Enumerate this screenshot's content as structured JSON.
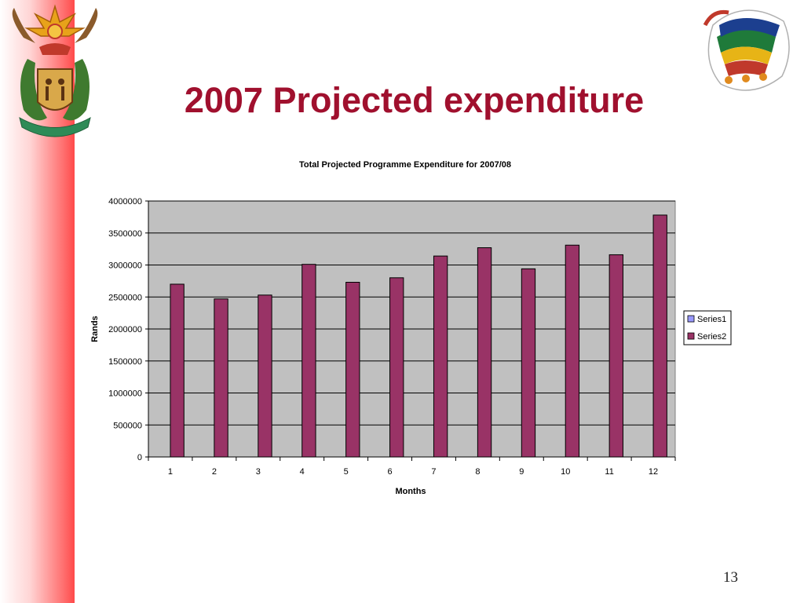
{
  "slide": {
    "title": "2007 Projected expenditure",
    "page_number": "13",
    "band_color": "#ff4a4a",
    "title_color": "#a0102e",
    "logos": [
      "south-africa-coat-of-arms",
      "10-years-of-freedom-logo"
    ]
  },
  "chart_data": {
    "type": "bar",
    "title": "Total Projected Programme Expenditure for 2007/08",
    "xlabel": "Months",
    "ylabel": "Rands",
    "categories": [
      "1",
      "2",
      "3",
      "4",
      "5",
      "6",
      "7",
      "8",
      "9",
      "10",
      "11",
      "12"
    ],
    "ylim": [
      0,
      4000000
    ],
    "yticks": [
      "0",
      "500000",
      "1000000",
      "1500000",
      "2000000",
      "2500000",
      "3000000",
      "3500000",
      "4000000"
    ],
    "series": [
      {
        "name": "Series1",
        "color": "#9999ff",
        "values": [
          0,
          0,
          0,
          0,
          0,
          0,
          0,
          0,
          0,
          0,
          0,
          0
        ]
      },
      {
        "name": "Series2",
        "color": "#993366",
        "values": [
          2700000,
          2470000,
          2530000,
          3010000,
          2730000,
          2800000,
          3140000,
          3270000,
          2940000,
          3310000,
          3160000,
          3780000
        ]
      }
    ],
    "plot_background": "#c0c0c0",
    "grid": true,
    "legend": "right"
  }
}
